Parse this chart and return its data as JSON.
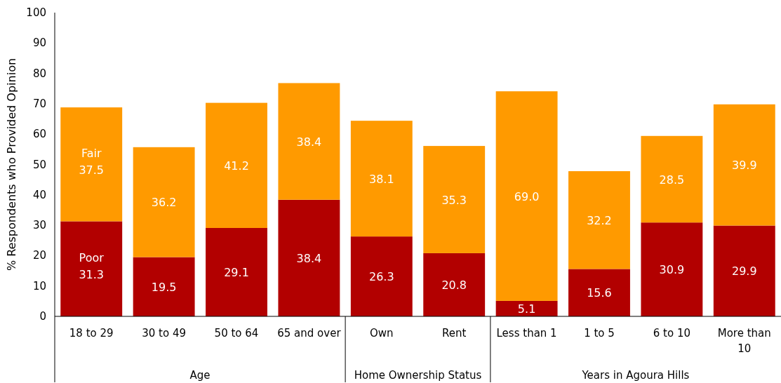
{
  "chart_data": {
    "type": "bar",
    "stacked": true,
    "ylabel": "% Respondents who Provided Opinion",
    "categories": [
      "18 to 29",
      "30 to 49",
      "50 to 64",
      "65 and over",
      "Own",
      "Rent",
      "Less than 1",
      "1 to 5",
      "6 to 10",
      "More than 10"
    ],
    "series": [
      {
        "name": "Poor",
        "color": "#b20000",
        "values": [
          31.3,
          19.5,
          29.1,
          38.4,
          26.3,
          20.8,
          5.1,
          15.6,
          30.9,
          29.9
        ],
        "value_labels": [
          "31.3",
          "19.5",
          "29.1",
          "38.4",
          "26.3",
          "20.8",
          "5.1",
          "15.6",
          "30.9",
          "29.9"
        ]
      },
      {
        "name": "Fair",
        "color": "#ff9a00",
        "values": [
          37.5,
          36.2,
          41.2,
          38.4,
          38.1,
          35.3,
          69.0,
          32.2,
          28.5,
          39.9
        ],
        "value_labels": [
          "37.5",
          "36.2",
          "41.2",
          "38.4",
          "38.1",
          "35.3",
          "69.0",
          "32.2",
          "28.5",
          "39.9"
        ]
      }
    ],
    "ylim": [
      0,
      100
    ],
    "yticks": [
      0,
      10,
      20,
      30,
      40,
      50,
      60,
      70,
      80,
      90,
      100
    ],
    "grid": false,
    "annotations": [
      "Age",
      "Home Ownership Status",
      "Years in Agoura Hills"
    ]
  }
}
